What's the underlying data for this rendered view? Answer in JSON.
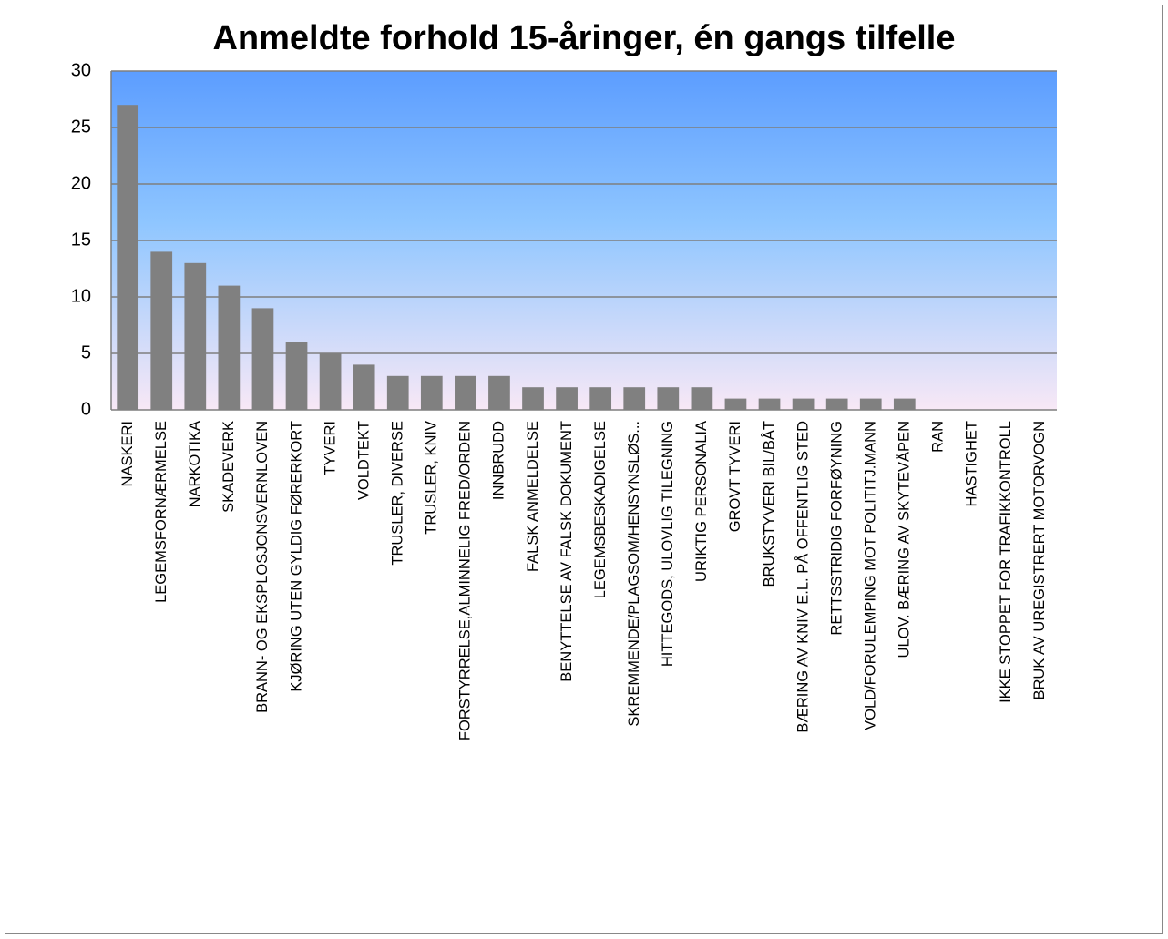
{
  "chart_data": {
    "type": "bar",
    "title": "Anmeldte forhold 15-åringer, én gangs tilfelle",
    "categories": [
      "NASKERI",
      "LEGEMSFORNÆRMELSE",
      "NARKOTIKA",
      "SKADEVERK",
      "BRANN- OG EKSPLOSJONSVERNLOVEN",
      "KJØRING UTEN GYLDIG FØRERKORT",
      "TYVERI",
      "VOLDTEKT",
      "TRUSLER, DIVERSE",
      "TRUSLER, KNIV",
      "FORSTYRRELSE,ALMINNELIG FRED/ORDEN",
      "INNBRUDD",
      "FALSK ANMELDELSE",
      "BENYTTELSE AV FALSK DOKUMENT",
      "LEGEMSBESKADIGELSE",
      "SKREMMENDE/PLAGSOM/HENSYNSLØS...",
      "HITTEGODS, ULOVLIG TILEGNING",
      "URIKTIG PERSONALIA",
      "GROVT TYVERI",
      "BRUKSTYVERI BIL/BÅT",
      "BÆRING AV KNIV E.L. PÅ OFFENTLIG STED",
      "RETTSSTRIDIG FORFØYNING",
      "VOLD/FORULEMPING MOT POLITITJ.MANN",
      "ULOV. BÆRING AV SKYTEVÅPEN",
      "RAN",
      "HASTIGHET",
      "IKKE STOPPET FOR TRAFIKKONTROLL",
      "BRUK AV UREGISTRERT MOTORVOGN"
    ],
    "values": [
      27,
      14,
      13,
      11,
      9,
      6,
      5,
      4,
      3,
      3,
      3,
      3,
      2,
      2,
      2,
      2,
      2,
      2,
      1,
      1,
      1,
      1,
      1,
      1,
      0,
      0,
      0,
      0
    ],
    "color": "#808080",
    "ylim": [
      0,
      30
    ],
    "yticks": [
      0,
      5,
      10,
      15,
      20,
      25,
      30
    ],
    "grid": true
  }
}
